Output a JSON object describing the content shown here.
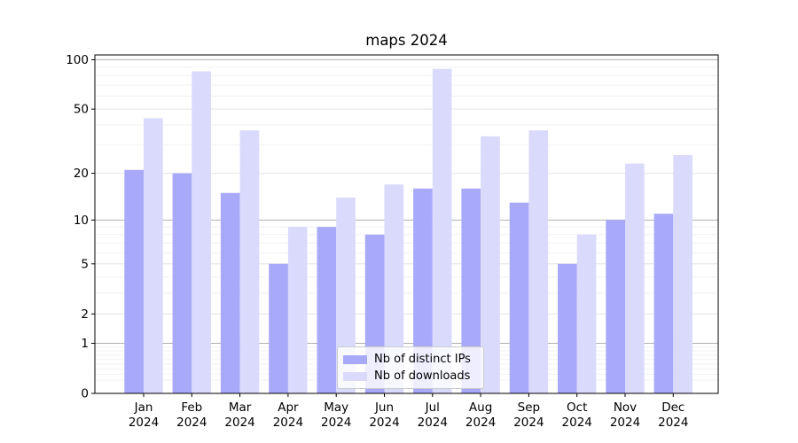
{
  "title": "maps 2024",
  "chart_data": {
    "type": "bar",
    "title": "maps 2024",
    "months": [
      "Jan",
      "Feb",
      "Mar",
      "Apr",
      "May",
      "Jun",
      "Jul",
      "Aug",
      "Sep",
      "Oct",
      "Nov",
      "Dec"
    ],
    "year": "2024",
    "categories": [
      "Jan 2024",
      "Feb 2024",
      "Mar 2024",
      "Apr 2024",
      "May 2024",
      "Jun 2024",
      "Jul 2024",
      "Aug 2024",
      "Sep 2024",
      "Oct 2024",
      "Nov 2024",
      "Dec 2024"
    ],
    "series": [
      {
        "name": "Nb of distinct IPs",
        "color": "#a9a9fa",
        "values": [
          21,
          20,
          15,
          5,
          9,
          8,
          16,
          16,
          13,
          5,
          10,
          11
        ]
      },
      {
        "name": "Nb of downloads",
        "color": "#dadafc",
        "values": [
          44,
          85,
          37,
          9,
          14,
          17,
          88,
          34,
          37,
          8,
          23,
          26
        ]
      }
    ],
    "xlabel": "",
    "ylabel": "",
    "yscale": "symlog",
    "ylim": [
      0,
      107
    ],
    "ytick_labels": [
      "0",
      "1",
      "2",
      "5",
      "10",
      "20",
      "50",
      "100"
    ],
    "yticks": [
      0,
      1,
      2,
      5,
      10,
      20,
      50,
      100
    ],
    "decade_ticks": [
      1,
      10,
      100
    ],
    "minor_gridlines": [
      0.2,
      0.3,
      0.4,
      0.5,
      0.6,
      0.7,
      0.8,
      0.9,
      3,
      4,
      6,
      7,
      8,
      9,
      30,
      40,
      60,
      70,
      80,
      90
    ],
    "grid": true,
    "legend_position": "lower center",
    "colors": {
      "bar_distinct_ips": "#a9a9fa",
      "bar_downloads": "#dadafc",
      "grid_decade": "#b0b0b0",
      "grid_major": "#e4e4e4",
      "grid_minor": "#f2f2f2",
      "spine": "#000000",
      "text": "#000000"
    }
  }
}
